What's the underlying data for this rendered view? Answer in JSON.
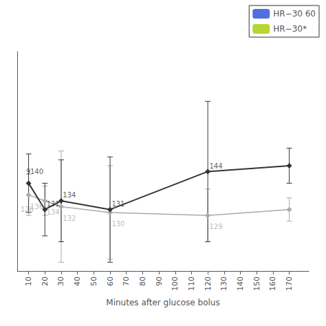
{
  "chart_data": {
    "type": "line",
    "xlabel": "Minutes after glucose bolus",
    "xlim": [
      3,
      182
    ],
    "xticks": [
      10,
      20,
      30,
      40,
      50,
      60,
      70,
      80,
      90,
      100,
      110,
      120,
      130,
      140,
      150,
      160,
      170
    ],
    "ylim": [
      110,
      185
    ],
    "tick_labels": "x",
    "grid": false,
    "legend": "upper right",
    "x": [
      10,
      20,
      30,
      60,
      120,
      170
    ],
    "series": [
      {
        "name": "HR−30 60",
        "color": "#aaaaaa",
        "marker": "diamond",
        "values": [
          136,
          134,
          132,
          130,
          129,
          131
        ],
        "yerr": [
          7,
          5,
          19,
          16,
          9,
          4
        ]
      },
      {
        "name": "HR−30*",
        "color": "#333333",
        "marker": "diamond",
        "values": [
          140,
          131,
          134,
          131,
          144,
          146
        ],
        "yerr": [
          10,
          9,
          14,
          18,
          24,
          6
        ]
      }
    ],
    "annotations": [
      {
        "text": "9",
        "x": 8.5,
        "y": 142.5,
        "series": "HR−30*",
        "position": "above"
      },
      {
        "text": "131",
        "x": 21,
        "y": 131.5,
        "series": "HR−30*",
        "position": "above"
      },
      {
        "text": "134",
        "x": 31,
        "y": 134.5,
        "series": "HR−30*",
        "position": "above"
      },
      {
        "text": "131",
        "x": 61,
        "y": 131.5,
        "series": "HR−30*",
        "position": "above"
      },
      {
        "text": "144",
        "x": 121,
        "y": 144.5,
        "series": "HR−30*",
        "position": "above"
      },
      {
        "text": "136",
        "x": 11,
        "y": 133.5,
        "series": "HR−30 60",
        "position": "below"
      },
      {
        "text": "134",
        "x": 21,
        "y": 131.5,
        "series": "HR−30 60",
        "position": "below"
      },
      {
        "text": "132",
        "x": 31,
        "y": 129.5,
        "series": "HR−30 60",
        "position": "below"
      },
      {
        "text": "130",
        "x": 61,
        "y": 127.5,
        "series": "HR−30 60",
        "position": "below"
      },
      {
        "text": "129",
        "x": 121,
        "y": 126.5,
        "series": "HR−30 60",
        "position": "below"
      },
      {
        "text": "140",
        "x": 11,
        "y": 142.5,
        "series": "HR−30*",
        "position": "above"
      },
      {
        "text": "126",
        "x": 5,
        "y": 132.5,
        "series": "HR−30 60",
        "position": "below"
      }
    ]
  }
}
